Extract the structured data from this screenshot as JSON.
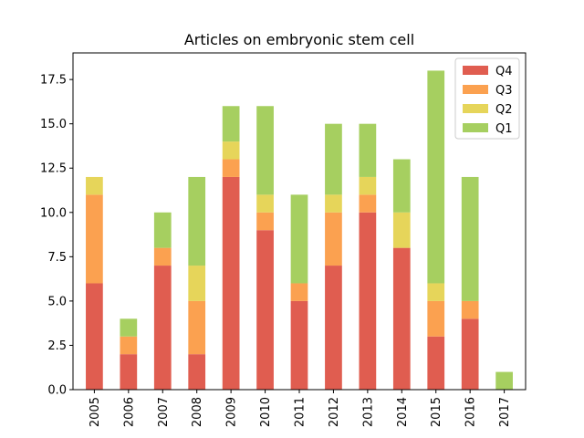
{
  "chart_data": {
    "type": "bar",
    "stacked": true,
    "title": "Articles on embryonic stem cell",
    "xlabel": "",
    "ylabel": "",
    "categories": [
      "2005",
      "2006",
      "2007",
      "2008",
      "2009",
      "2010",
      "2011",
      "2012",
      "2013",
      "2014",
      "2015",
      "2016",
      "2017"
    ],
    "ylim": [
      0,
      19
    ],
    "yticks": [
      0.0,
      2.5,
      5.0,
      7.5,
      10.0,
      12.5,
      15.0,
      17.5
    ],
    "ytick_labels": [
      "0.0",
      "2.5",
      "5.0",
      "7.5",
      "10.0",
      "12.5",
      "15.0",
      "17.5"
    ],
    "grid": false,
    "legend_position": "top-right",
    "series": [
      {
        "name": "Q4",
        "color": "#e05d50",
        "values": [
          6,
          2,
          7,
          2,
          12,
          9,
          5,
          7,
          10,
          8,
          3,
          4,
          0
        ]
      },
      {
        "name": "Q3",
        "color": "#fba150",
        "values": [
          5,
          1,
          1,
          3,
          1,
          1,
          1,
          3,
          1,
          0,
          2,
          1,
          0
        ]
      },
      {
        "name": "Q2",
        "color": "#e6d55a",
        "values": [
          1,
          0,
          0,
          2,
          1,
          1,
          0,
          1,
          1,
          2,
          1,
          0,
          0
        ]
      },
      {
        "name": "Q1",
        "color": "#a6cf60",
        "values": [
          0,
          1,
          2,
          5,
          2,
          5,
          5,
          4,
          3,
          3,
          12,
          7,
          1
        ]
      }
    ]
  }
}
